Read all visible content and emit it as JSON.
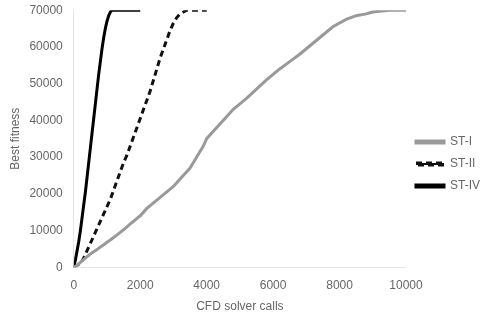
{
  "chart_data": {
    "type": "line",
    "xlabel": "CFD solver calls",
    "ylabel": "Best fitness",
    "xlim": [
      0,
      10000
    ],
    "ylim": [
      0,
      70000
    ],
    "xticks": [
      0,
      2000,
      4000,
      6000,
      8000,
      10000
    ],
    "yticks": [
      0,
      10000,
      20000,
      30000,
      40000,
      50000,
      60000,
      70000
    ],
    "grid": false,
    "legend": "center right",
    "series": [
      {
        "name": "ST-I",
        "color": "#999999",
        "line_style": "solid",
        "x": [
          0,
          50,
          100,
          150,
          200,
          250,
          300,
          350,
          400,
          450,
          500,
          600,
          700,
          800,
          900,
          1000,
          1100,
          1200,
          1300,
          1400,
          1500,
          1600,
          1700,
          1800,
          1900,
          2000,
          2100,
          2200,
          2400,
          2600,
          2800,
          3000,
          3200,
          3400,
          3500,
          3600,
          3700,
          3800,
          3900,
          4000,
          4200,
          4400,
          4600,
          4800,
          5000,
          5200,
          5500,
          5800,
          6000,
          6200,
          6500,
          6800,
          7000,
          7200,
          7400,
          7600,
          7800,
          8000,
          8200,
          8500,
          8800,
          9000,
          9200,
          9500,
          9800,
          10000
        ],
        "values": [
          0,
          200,
          500,
          900,
          1300,
          1700,
          2100,
          2500,
          2900,
          3200,
          3600,
          4200,
          4800,
          5500,
          6100,
          6800,
          7400,
          8100,
          8800,
          9500,
          10200,
          11000,
          11800,
          12500,
          13300,
          14000,
          15000,
          16000,
          17500,
          19000,
          20500,
          22000,
          24000,
          26000,
          27000,
          28500,
          30000,
          31500,
          33000,
          35000,
          37000,
          39000,
          41000,
          43000,
          44500,
          46000,
          48500,
          51000,
          52500,
          54000,
          56000,
          58000,
          59500,
          61000,
          62500,
          64000,
          65500,
          66500,
          67500,
          68500,
          69000,
          69500,
          69700,
          70000,
          70000,
          70000
        ]
      },
      {
        "name": "ST-II",
        "color": "#111111",
        "line_style": "dashed",
        "x": [
          0,
          200,
          300,
          400,
          500,
          600,
          700,
          800,
          900,
          1000,
          1100,
          1200,
          1300,
          1400,
          1500,
          1600,
          1700,
          1800,
          1900,
          2000,
          2100,
          2200,
          2300,
          2400,
          2500,
          2600,
          2700,
          2800,
          2900,
          3000,
          3100,
          3200,
          3300,
          3400,
          3500,
          3600,
          3700,
          3800,
          3900,
          4000
        ],
        "values": [
          0,
          1000,
          2500,
          4500,
          6500,
          8500,
          10500,
          12500,
          14500,
          16500,
          18500,
          21000,
          23500,
          26000,
          28500,
          30500,
          33000,
          35500,
          38000,
          40500,
          43000,
          45500,
          48000,
          51000,
          54000,
          57000,
          59500,
          62000,
          64500,
          66500,
          68000,
          69000,
          69500,
          70000,
          70000,
          70000,
          70000,
          70000,
          70000,
          70000
        ]
      },
      {
        "name": "ST-IV",
        "color": "#000000",
        "line_style": "solid",
        "x": [
          0,
          50,
          100,
          150,
          200,
          250,
          300,
          350,
          400,
          450,
          500,
          550,
          600,
          650,
          700,
          750,
          800,
          850,
          900,
          950,
          1000,
          1050,
          1100,
          1150,
          1200,
          1250,
          1300,
          1400,
          1500,
          1600,
          1700,
          1800,
          1900,
          2000
        ],
        "values": [
          0,
          2000,
          4500,
          7000,
          10000,
          13500,
          17000,
          20500,
          24500,
          28500,
          32500,
          36500,
          40500,
          44500,
          48500,
          52500,
          56000,
          59500,
          62500,
          65000,
          67000,
          68500,
          69500,
          70000,
          70000,
          70000,
          70000,
          70000,
          70000,
          70000,
          70000,
          70000,
          70000,
          70000
        ]
      }
    ]
  }
}
